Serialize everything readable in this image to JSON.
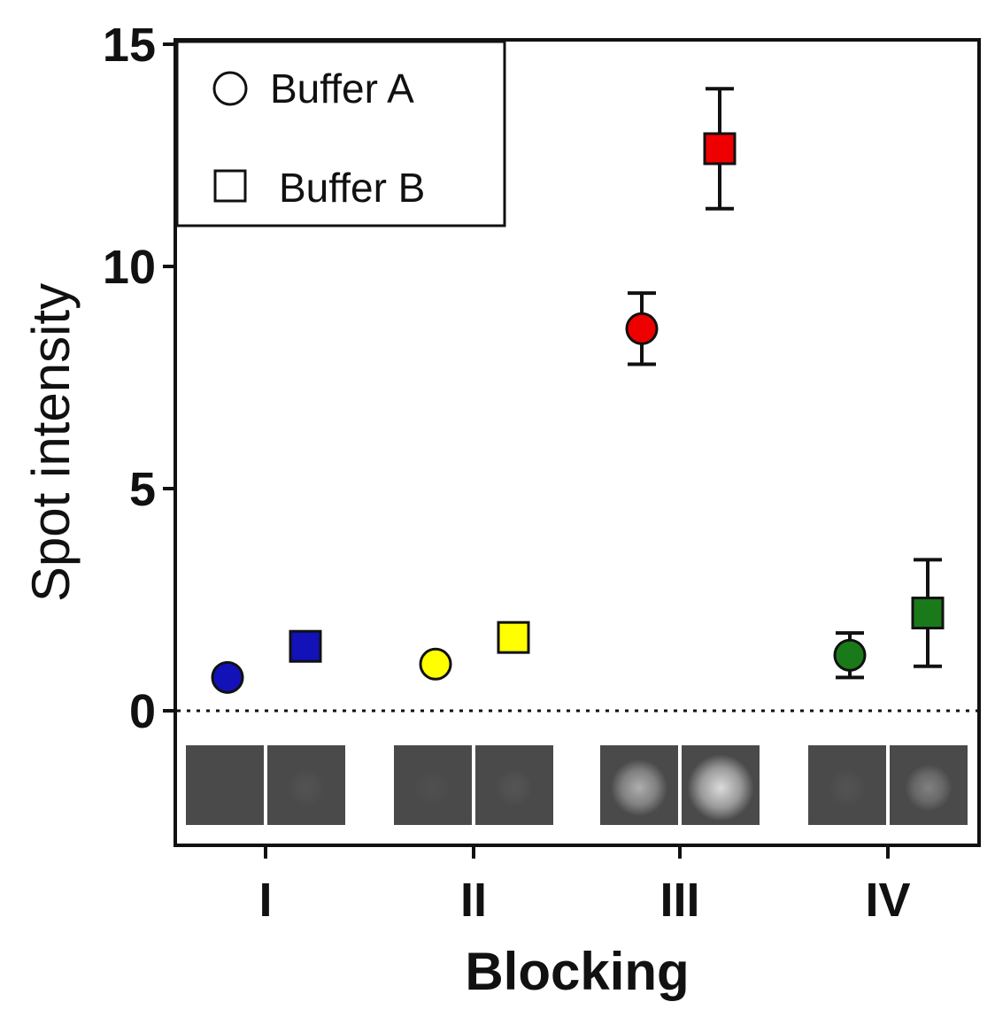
{
  "chart_data": {
    "type": "scatter",
    "title": "",
    "xlabel": "Blocking",
    "ylabel": "Spot intensity",
    "ylim": [
      -3,
      15
    ],
    "yticks": [
      0,
      5,
      10,
      15
    ],
    "ytick_labels": [
      "0",
      "5",
      "10",
      "15"
    ],
    "categories": [
      "I",
      "II",
      "III",
      "IV"
    ],
    "grid": false,
    "legend_position": "top-left",
    "reference_line": {
      "y": 0,
      "style": "dotted"
    },
    "series": [
      {
        "name": "Buffer A",
        "marker": "circle",
        "values": [
          0.75,
          1.05,
          8.6,
          1.25
        ],
        "errors": [
          0,
          0,
          0.8,
          0.5
        ],
        "colors": [
          "#1212b8",
          "#ffff00",
          "#ee0000",
          "#1a7a1a"
        ]
      },
      {
        "name": "Buffer B",
        "marker": "square",
        "values": [
          1.45,
          1.65,
          12.65,
          2.2
        ],
        "errors": [
          0,
          0,
          1.35,
          1.2
        ],
        "colors": [
          "#1212b8",
          "#ffff00",
          "#ee0000",
          "#1a7a1a"
        ]
      }
    ],
    "spot_images": {
      "description_category": "spot-thumbnails",
      "glow_levels": [
        [
          0,
          0.05
        ],
        [
          0.03,
          0.06
        ],
        [
          0.55,
          0.8
        ],
        [
          0.05,
          0.3
        ]
      ]
    }
  }
}
